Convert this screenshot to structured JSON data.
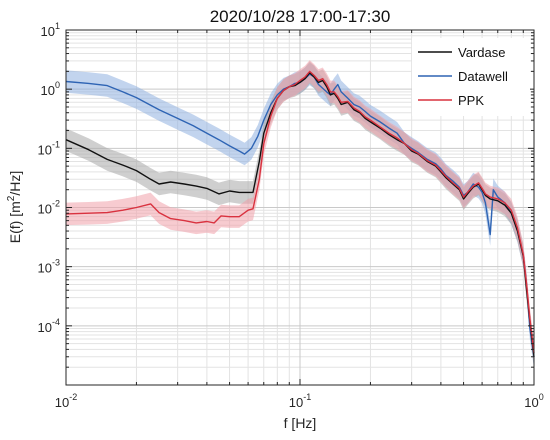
{
  "chart_data": {
    "type": "line",
    "title": "2020/10/28 17:00-17:30",
    "xlabel": "f [Hz]",
    "ylabel_main": "E(f) [m",
    "ylabel_sup": "2",
    "ylabel_tail": "/Hz]",
    "x_scale": "log",
    "y_scale": "log",
    "xlim": [
      0.01,
      1
    ],
    "ylim": [
      1e-05,
      10
    ],
    "grid": true,
    "legend_position": "top-right",
    "x_ticks": [
      {
        "value": 0.01,
        "base": "10",
        "exp": "-2"
      },
      {
        "value": 0.1,
        "base": "10",
        "exp": "-1"
      },
      {
        "value": 1,
        "base": "10",
        "exp": "0"
      }
    ],
    "y_ticks": [
      {
        "value": 0.0001,
        "base": "10",
        "exp": "-4"
      },
      {
        "value": 0.001,
        "base": "10",
        "exp": "-3"
      },
      {
        "value": 0.01,
        "base": "10",
        "exp": "-2"
      },
      {
        "value": 0.1,
        "base": "10",
        "exp": "-1"
      },
      {
        "value": 1,
        "base": "10",
        "exp": "0"
      },
      {
        "value": 10,
        "base": "10",
        "exp": "1"
      }
    ],
    "series": [
      {
        "name": "Datawell",
        "color": "#2e64b4",
        "band_color": "#8fb0e0",
        "points": [
          [
            0.01,
            1.35
          ],
          [
            0.0125,
            1.25
          ],
          [
            0.015,
            1.15
          ],
          [
            0.0175,
            0.9
          ],
          [
            0.02,
            0.72
          ],
          [
            0.025,
            0.45
          ],
          [
            0.03,
            0.32
          ],
          [
            0.035,
            0.24
          ],
          [
            0.04,
            0.18
          ],
          [
            0.045,
            0.14
          ],
          [
            0.05,
            0.11
          ],
          [
            0.055,
            0.09
          ],
          [
            0.058,
            0.08
          ],
          [
            0.062,
            0.1
          ],
          [
            0.066,
            0.16
          ],
          [
            0.07,
            0.3
          ],
          [
            0.075,
            0.55
          ],
          [
            0.08,
            0.8
          ],
          [
            0.085,
            1.0
          ],
          [
            0.09,
            1.1
          ],
          [
            0.095,
            1.25
          ],
          [
            0.1,
            1.3
          ],
          [
            0.105,
            1.5
          ],
          [
            0.11,
            1.8
          ],
          [
            0.115,
            1.6
          ],
          [
            0.12,
            1.2
          ],
          [
            0.13,
            0.9
          ],
          [
            0.135,
            0.8
          ],
          [
            0.14,
            1.0
          ],
          [
            0.145,
            1.2
          ],
          [
            0.15,
            0.9
          ],
          [
            0.16,
            0.7
          ],
          [
            0.17,
            0.55
          ],
          [
            0.18,
            0.5
          ],
          [
            0.19,
            0.42
          ],
          [
            0.2,
            0.35
          ],
          [
            0.22,
            0.28
          ],
          [
            0.24,
            0.22
          ],
          [
            0.26,
            0.18
          ],
          [
            0.28,
            0.12
          ],
          [
            0.3,
            0.1
          ],
          [
            0.32,
            0.085
          ],
          [
            0.35,
            0.065
          ],
          [
            0.38,
            0.055
          ],
          [
            0.4,
            0.045
          ],
          [
            0.42,
            0.035
          ],
          [
            0.45,
            0.028
          ],
          [
            0.48,
            0.022
          ],
          [
            0.5,
            0.016
          ],
          [
            0.52,
            0.018
          ],
          [
            0.55,
            0.025
          ],
          [
            0.58,
            0.022
          ],
          [
            0.6,
            0.018
          ],
          [
            0.62,
            0.012
          ],
          [
            0.65,
            0.0035
          ],
          [
            0.67,
            0.02
          ],
          [
            0.7,
            0.015
          ],
          [
            0.75,
            0.012
          ],
          [
            0.8,
            0.008
          ],
          [
            0.85,
            0.004
          ],
          [
            0.9,
            0.0015
          ],
          [
            0.93,
            0.0005
          ],
          [
            0.96,
            9e-05
          ],
          [
            1.0,
            3e-05
          ]
        ]
      },
      {
        "name": "Vardase",
        "color": "#111111",
        "band_color": "#a8a8a8",
        "points": [
          [
            0.01,
            0.14
          ],
          [
            0.0125,
            0.095
          ],
          [
            0.015,
            0.065
          ],
          [
            0.0175,
            0.052
          ],
          [
            0.02,
            0.042
          ],
          [
            0.023,
            0.03
          ],
          [
            0.025,
            0.025
          ],
          [
            0.028,
            0.027
          ],
          [
            0.032,
            0.025
          ],
          [
            0.036,
            0.023
          ],
          [
            0.04,
            0.021
          ],
          [
            0.045,
            0.017
          ],
          [
            0.05,
            0.019
          ],
          [
            0.055,
            0.018
          ],
          [
            0.06,
            0.018
          ],
          [
            0.063,
            0.018
          ],
          [
            0.067,
            0.06
          ],
          [
            0.07,
            0.18
          ],
          [
            0.075,
            0.4
          ],
          [
            0.08,
            0.7
          ],
          [
            0.085,
            0.95
          ],
          [
            0.09,
            1.1
          ],
          [
            0.095,
            1.15
          ],
          [
            0.1,
            1.3
          ],
          [
            0.105,
            1.5
          ],
          [
            0.11,
            1.9
          ],
          [
            0.115,
            1.6
          ],
          [
            0.12,
            1.3
          ],
          [
            0.125,
            1.4
          ],
          [
            0.13,
            1.1
          ],
          [
            0.135,
            0.8
          ],
          [
            0.14,
            0.85
          ],
          [
            0.145,
            0.7
          ],
          [
            0.15,
            0.55
          ],
          [
            0.16,
            0.6
          ],
          [
            0.17,
            0.45
          ],
          [
            0.18,
            0.4
          ],
          [
            0.19,
            0.32
          ],
          [
            0.2,
            0.28
          ],
          [
            0.22,
            0.22
          ],
          [
            0.24,
            0.17
          ],
          [
            0.26,
            0.14
          ],
          [
            0.28,
            0.12
          ],
          [
            0.3,
            0.09
          ],
          [
            0.32,
            0.08
          ],
          [
            0.35,
            0.06
          ],
          [
            0.38,
            0.05
          ],
          [
            0.4,
            0.04
          ],
          [
            0.42,
            0.032
          ],
          [
            0.45,
            0.025
          ],
          [
            0.48,
            0.02
          ],
          [
            0.5,
            0.014
          ],
          [
            0.52,
            0.017
          ],
          [
            0.55,
            0.022
          ],
          [
            0.58,
            0.025
          ],
          [
            0.6,
            0.02
          ],
          [
            0.62,
            0.016
          ],
          [
            0.65,
            0.014
          ],
          [
            0.7,
            0.013
          ],
          [
            0.75,
            0.011
          ],
          [
            0.8,
            0.008
          ],
          [
            0.85,
            0.004
          ],
          [
            0.9,
            0.0015
          ],
          [
            0.93,
            0.0004
          ],
          [
            0.96,
            0.00012
          ],
          [
            1.0,
            3e-05
          ]
        ]
      },
      {
        "name": "PPK",
        "color": "#d9323f",
        "band_color": "#f0a0aa",
        "points": [
          [
            0.01,
            0.0078
          ],
          [
            0.0125,
            0.008
          ],
          [
            0.015,
            0.0082
          ],
          [
            0.0175,
            0.009
          ],
          [
            0.02,
            0.01
          ],
          [
            0.023,
            0.0115
          ],
          [
            0.025,
            0.0082
          ],
          [
            0.028,
            0.0065
          ],
          [
            0.032,
            0.006
          ],
          [
            0.036,
            0.0055
          ],
          [
            0.04,
            0.0058
          ],
          [
            0.043,
            0.0055
          ],
          [
            0.046,
            0.0072
          ],
          [
            0.05,
            0.007
          ],
          [
            0.055,
            0.007
          ],
          [
            0.06,
            0.009
          ],
          [
            0.063,
            0.0095
          ],
          [
            0.067,
            0.03
          ],
          [
            0.07,
            0.12
          ],
          [
            0.075,
            0.35
          ],
          [
            0.08,
            0.7
          ],
          [
            0.085,
            0.95
          ],
          [
            0.09,
            1.1
          ],
          [
            0.095,
            1.2
          ],
          [
            0.1,
            1.4
          ],
          [
            0.105,
            1.6
          ],
          [
            0.11,
            2.0
          ],
          [
            0.115,
            1.7
          ],
          [
            0.12,
            1.4
          ],
          [
            0.125,
            1.5
          ],
          [
            0.13,
            1.2
          ],
          [
            0.135,
            0.9
          ],
          [
            0.14,
            0.9
          ],
          [
            0.145,
            0.75
          ],
          [
            0.15,
            0.6
          ],
          [
            0.16,
            0.62
          ],
          [
            0.17,
            0.48
          ],
          [
            0.18,
            0.42
          ],
          [
            0.19,
            0.34
          ],
          [
            0.2,
            0.3
          ],
          [
            0.22,
            0.23
          ],
          [
            0.24,
            0.18
          ],
          [
            0.26,
            0.15
          ],
          [
            0.28,
            0.12
          ],
          [
            0.3,
            0.095
          ],
          [
            0.32,
            0.082
          ],
          [
            0.35,
            0.062
          ],
          [
            0.38,
            0.052
          ],
          [
            0.4,
            0.042
          ],
          [
            0.42,
            0.034
          ],
          [
            0.45,
            0.026
          ],
          [
            0.48,
            0.021
          ],
          [
            0.5,
            0.015
          ],
          [
            0.52,
            0.018
          ],
          [
            0.55,
            0.023
          ],
          [
            0.58,
            0.026
          ],
          [
            0.6,
            0.021
          ],
          [
            0.62,
            0.017
          ],
          [
            0.65,
            0.015
          ],
          [
            0.7,
            0.014
          ],
          [
            0.75,
            0.012
          ],
          [
            0.8,
            0.009
          ],
          [
            0.85,
            0.0045
          ],
          [
            0.9,
            0.0016
          ],
          [
            0.93,
            0.0005
          ],
          [
            0.96,
            0.00013
          ],
          [
            1.0,
            3.5e-05
          ]
        ]
      }
    ],
    "legend": [
      {
        "name": "Vardase",
        "color": "#111111"
      },
      {
        "name": "Datawell",
        "color": "#2e64b4"
      },
      {
        "name": "PPK",
        "color": "#d9323f"
      }
    ]
  }
}
